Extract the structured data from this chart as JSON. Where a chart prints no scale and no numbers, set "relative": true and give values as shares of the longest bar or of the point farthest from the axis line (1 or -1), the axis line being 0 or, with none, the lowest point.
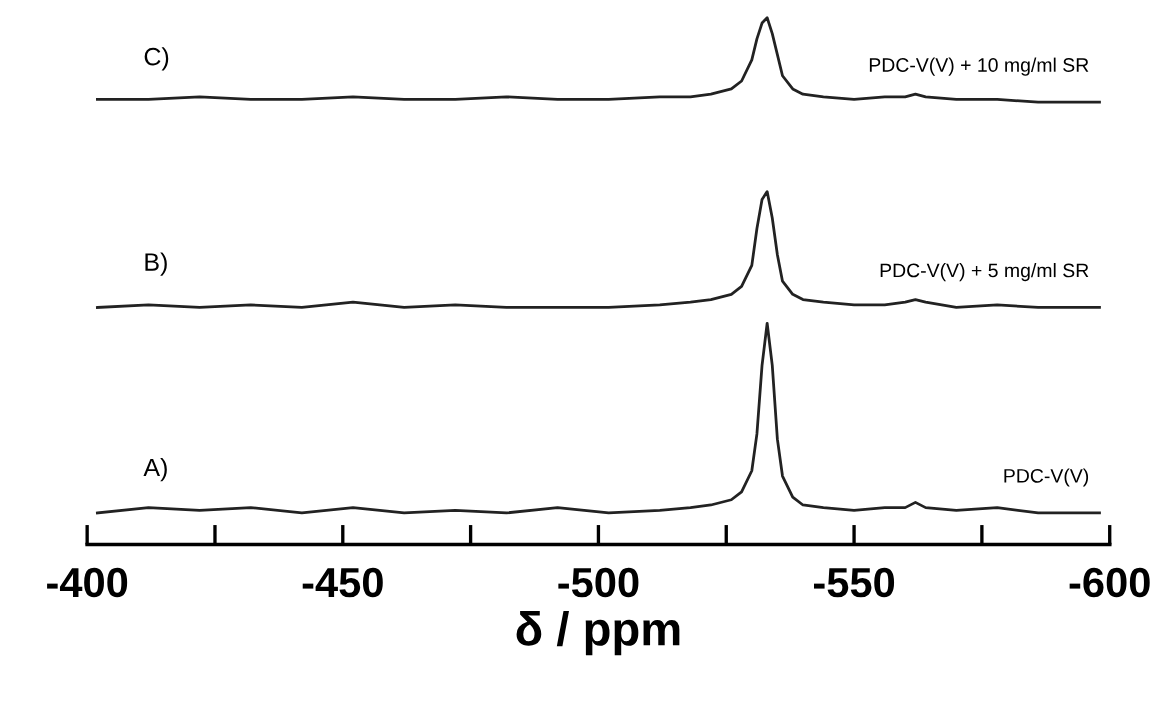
{
  "chart_data": {
    "type": "line",
    "relative": true,
    "xlabel": "δ / ppm",
    "xlim": [
      -400,
      -600
    ],
    "xticks": [
      -400,
      {
        "value": -425,
        "label": null
      },
      -450,
      {
        "value": -475,
        "label": null
      },
      -500,
      {
        "value": -525,
        "label": null
      },
      -550,
      {
        "value": -575,
        "label": null
      },
      -600
    ],
    "tick_labels": "x",
    "grid": false,
    "legend": false,
    "marker": "none",
    "line_style": "solid",
    "x": [
      -402,
      -412,
      -422,
      -432,
      -442,
      -452,
      -462,
      -472,
      -482,
      -492,
      -502,
      -512,
      -518,
      -522,
      -526,
      -528,
      -530,
      -531,
      -532,
      -533,
      -534,
      -535,
      -536,
      -538,
      -540,
      -544,
      -550,
      -556,
      -560,
      -562,
      -564,
      -570,
      -578,
      -586,
      -598
    ],
    "series": [
      {
        "name": "C)",
        "color": "#222222",
        "values": [
          0.845,
          0.845,
          0.85,
          0.845,
          0.845,
          0.85,
          0.845,
          0.845,
          0.85,
          0.845,
          0.845,
          0.85,
          0.85,
          0.855,
          0.865,
          0.88,
          0.92,
          0.96,
          0.99,
          1.0,
          0.97,
          0.93,
          0.89,
          0.865,
          0.855,
          0.85,
          0.845,
          0.85,
          0.85,
          0.855,
          0.85,
          0.845,
          0.845,
          0.84,
          0.84
        ]
      },
      {
        "name": "B)",
        "color": "#222222",
        "values": [
          0.45,
          0.455,
          0.45,
          0.455,
          0.45,
          0.46,
          0.45,
          0.455,
          0.45,
          0.45,
          0.45,
          0.455,
          0.46,
          0.465,
          0.475,
          0.49,
          0.53,
          0.6,
          0.655,
          0.67,
          0.62,
          0.55,
          0.5,
          0.475,
          0.465,
          0.46,
          0.455,
          0.455,
          0.46,
          0.465,
          0.46,
          0.45,
          0.455,
          0.45,
          0.45
        ]
      },
      {
        "name": "A)",
        "color": "#222222",
        "values": [
          0.06,
          0.07,
          0.065,
          0.07,
          0.06,
          0.07,
          0.06,
          0.065,
          0.06,
          0.07,
          0.06,
          0.065,
          0.07,
          0.075,
          0.085,
          0.1,
          0.14,
          0.21,
          0.34,
          0.42,
          0.34,
          0.2,
          0.13,
          0.09,
          0.075,
          0.07,
          0.065,
          0.07,
          0.07,
          0.08,
          0.07,
          0.065,
          0.07,
          0.06,
          0.06
        ]
      }
    ],
    "annotations": [
      "PDC-V(V) + 10 mg/ml SR",
      "PDC-V(V) + 5 mg/ml SR",
      "PDC-V(V)"
    ]
  }
}
